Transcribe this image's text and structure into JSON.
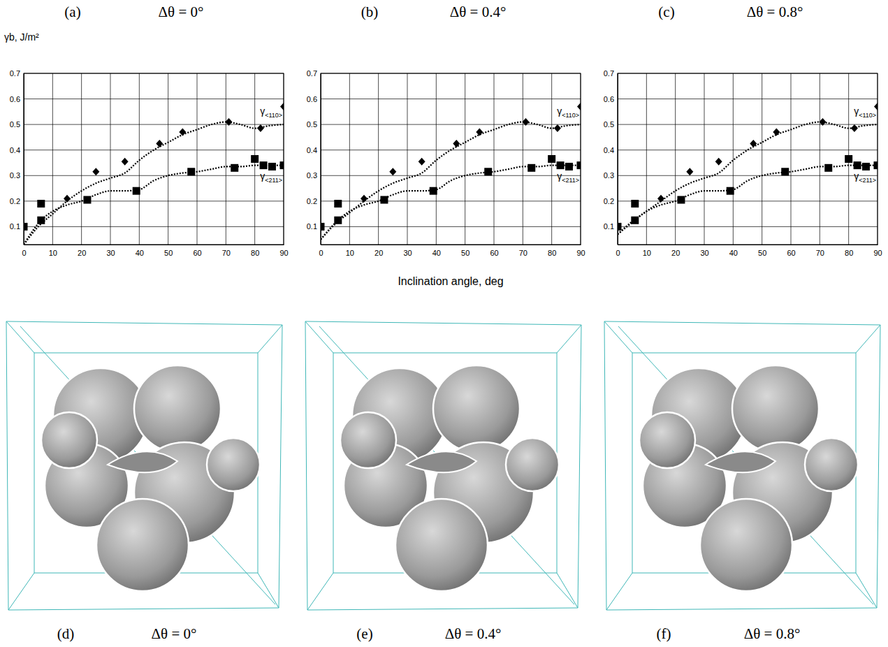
{
  "chart_data": [
    {
      "type": "scatter",
      "title": "(a)",
      "subtitle": "Δθ = 0°",
      "ylabel": "γb, J/m²",
      "xlim": [
        0,
        90
      ],
      "ylim": [
        0.03,
        0.7
      ],
      "xticks": [
        0,
        10,
        20,
        30,
        40,
        50,
        60,
        70,
        80,
        90
      ],
      "yticks": [
        0.1,
        0.2,
        0.3,
        0.4,
        0.5,
        0.6,
        0.7
      ],
      "grid": true,
      "series": [
        {
          "name": "γ<110>",
          "type": "line",
          "line_style": "dotted",
          "color": "#000000",
          "x": [
            0,
            5,
            10,
            15,
            20,
            25,
            30,
            35,
            40,
            45,
            50,
            55,
            60,
            65,
            70,
            75,
            80,
            85,
            90
          ],
          "values": [
            0.03,
            0.1,
            0.15,
            0.2,
            0.24,
            0.27,
            0.29,
            0.31,
            0.36,
            0.4,
            0.43,
            0.46,
            0.48,
            0.5,
            0.51,
            0.5,
            0.485,
            0.495,
            0.5
          ]
        },
        {
          "type": "scatter",
          "marker": "diamond",
          "color": "#000000",
          "x": [
            15,
            25,
            35,
            47,
            55,
            71,
            82,
            90
          ],
          "values": [
            0.21,
            0.315,
            0.355,
            0.425,
            0.47,
            0.51,
            0.485,
            0.57
          ]
        },
        {
          "name": "γ<211>",
          "type": "line",
          "line_style": "dotted",
          "color": "#000000",
          "x": [
            0,
            6,
            10,
            15,
            20,
            25,
            30,
            35,
            40,
            45,
            50,
            55,
            60,
            65,
            70,
            75,
            80,
            85,
            90
          ],
          "values": [
            0.03,
            0.125,
            0.16,
            0.185,
            0.2,
            0.225,
            0.24,
            0.24,
            0.245,
            0.28,
            0.3,
            0.31,
            0.315,
            0.325,
            0.335,
            0.335,
            0.34,
            0.34,
            0.34
          ]
        },
        {
          "type": "scatter",
          "marker": "square",
          "color": "#000000",
          "x": [
            0,
            6,
            6,
            22,
            39,
            58,
            73,
            80,
            83,
            86,
            90
          ],
          "values": [
            0.1,
            0.19,
            0.125,
            0.205,
            0.24,
            0.315,
            0.33,
            0.365,
            0.34,
            0.335,
            0.34
          ]
        }
      ]
    },
    {
      "type": "scatter",
      "title": "(b)",
      "subtitle": "Δθ = 0.4°",
      "xlabel": "Inclination angle, deg",
      "xlim": [
        0,
        90
      ],
      "ylim": [
        0.03,
        0.7
      ],
      "xticks": [
        0,
        10,
        20,
        30,
        40,
        50,
        60,
        70,
        80,
        90
      ],
      "yticks": [
        0.1,
        0.2,
        0.3,
        0.4,
        0.5,
        0.6,
        0.7
      ],
      "grid": true,
      "series": [
        {
          "name": "γ<110>",
          "type": "line",
          "line_style": "dotted",
          "color": "#000000",
          "x": [
            0,
            5,
            10,
            15,
            20,
            25,
            30,
            35,
            40,
            45,
            50,
            55,
            60,
            65,
            70,
            75,
            80,
            85,
            90
          ],
          "values": [
            0.05,
            0.11,
            0.155,
            0.2,
            0.24,
            0.27,
            0.29,
            0.31,
            0.36,
            0.4,
            0.43,
            0.46,
            0.48,
            0.5,
            0.51,
            0.5,
            0.485,
            0.495,
            0.5
          ]
        },
        {
          "type": "scatter",
          "marker": "diamond",
          "color": "#000000",
          "x": [
            15,
            25,
            35,
            47,
            55,
            71,
            82,
            90
          ],
          "values": [
            0.21,
            0.315,
            0.355,
            0.425,
            0.47,
            0.51,
            0.485,
            0.57
          ]
        },
        {
          "name": "γ<211>",
          "type": "line",
          "line_style": "dotted",
          "color": "#000000",
          "x": [
            0,
            6,
            10,
            15,
            20,
            25,
            30,
            35,
            40,
            45,
            50,
            55,
            60,
            65,
            70,
            75,
            80,
            85,
            90
          ],
          "values": [
            0.05,
            0.125,
            0.16,
            0.185,
            0.2,
            0.225,
            0.24,
            0.24,
            0.245,
            0.28,
            0.3,
            0.31,
            0.315,
            0.325,
            0.335,
            0.335,
            0.34,
            0.34,
            0.34
          ]
        },
        {
          "type": "scatter",
          "marker": "square",
          "color": "#000000",
          "x": [
            0,
            6,
            6,
            22,
            39,
            58,
            73,
            80,
            83,
            86,
            90
          ],
          "values": [
            0.1,
            0.19,
            0.125,
            0.205,
            0.24,
            0.315,
            0.33,
            0.365,
            0.34,
            0.335,
            0.34
          ]
        }
      ]
    },
    {
      "type": "scatter",
      "title": "(c)",
      "subtitle": "Δθ = 0.8°",
      "xlim": [
        0,
        90
      ],
      "ylim": [
        0.03,
        0.7
      ],
      "xticks": [
        0,
        10,
        20,
        30,
        40,
        50,
        60,
        70,
        80,
        90
      ],
      "yticks": [
        0.1,
        0.2,
        0.3,
        0.4,
        0.5,
        0.6,
        0.7
      ],
      "grid": true,
      "series": [
        {
          "name": "γ<110>",
          "type": "line",
          "line_style": "dotted",
          "color": "#000000",
          "x": [
            0,
            5,
            10,
            15,
            20,
            25,
            30,
            35,
            40,
            45,
            50,
            55,
            60,
            65,
            70,
            75,
            80,
            85,
            90
          ],
          "values": [
            0.07,
            0.12,
            0.16,
            0.2,
            0.24,
            0.27,
            0.29,
            0.31,
            0.36,
            0.4,
            0.43,
            0.46,
            0.48,
            0.5,
            0.51,
            0.5,
            0.485,
            0.495,
            0.5
          ]
        },
        {
          "type": "scatter",
          "marker": "diamond",
          "color": "#000000",
          "x": [
            15,
            25,
            35,
            47,
            55,
            71,
            82,
            90
          ],
          "values": [
            0.21,
            0.315,
            0.355,
            0.425,
            0.47,
            0.51,
            0.485,
            0.57
          ]
        },
        {
          "name": "γ<211>",
          "type": "line",
          "line_style": "dotted",
          "color": "#000000",
          "x": [
            0,
            6,
            10,
            15,
            20,
            25,
            30,
            35,
            40,
            45,
            50,
            55,
            60,
            65,
            70,
            75,
            80,
            85,
            90
          ],
          "values": [
            0.07,
            0.125,
            0.16,
            0.185,
            0.2,
            0.225,
            0.24,
            0.24,
            0.245,
            0.28,
            0.3,
            0.31,
            0.315,
            0.325,
            0.335,
            0.335,
            0.34,
            0.34,
            0.34
          ]
        },
        {
          "type": "scatter",
          "marker": "square",
          "color": "#000000",
          "x": [
            0,
            6,
            6,
            22,
            39,
            58,
            73,
            80,
            83,
            86,
            90
          ],
          "values": [
            0.1,
            0.19,
            0.125,
            0.205,
            0.24,
            0.315,
            0.33,
            0.365,
            0.34,
            0.335,
            0.34
          ]
        }
      ]
    }
  ],
  "renderings": [
    {
      "label": "(d)",
      "caption": "Δθ = 0°"
    },
    {
      "label": "(e)",
      "caption": "Δθ = 0.4°"
    },
    {
      "label": "(f)",
      "caption": "Δθ = 0.8°"
    }
  ]
}
